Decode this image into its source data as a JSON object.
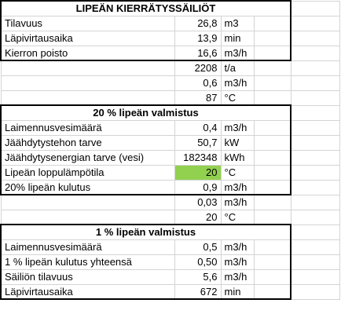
{
  "section1": {
    "title": "LIPEÄN KIERRÄTYSSÄILIÖT",
    "rows": [
      {
        "label": "Tilavuus",
        "value": "26,8",
        "unit": "m3"
      },
      {
        "label": "Läpivirtausaika",
        "value": "13,9",
        "unit": "min"
      },
      {
        "label": "Kierron poisto",
        "value": "16,6",
        "unit": "m3/h"
      }
    ]
  },
  "extra1": [
    {
      "value": "2208",
      "unit": "t/a"
    },
    {
      "value": "0,6",
      "unit": "m3/h"
    },
    {
      "value": "87",
      "unit": "°C"
    }
  ],
  "section2": {
    "title": "20 % lipeän valmistus",
    "rows": [
      {
        "label": "Laimennusvesimäärä",
        "value": "0,4",
        "unit": "m3/h"
      },
      {
        "label": "Jäähdytystehon tarve",
        "value": "50,7",
        "unit": "kW"
      },
      {
        "label": "Jäähdytysenergian tarve (vesi)",
        "value": "182348",
        "unit": "kWh"
      },
      {
        "label": "Lipeän loppulämpötila",
        "value": "20",
        "unit": "°C",
        "highlight_color": "#92d050"
      },
      {
        "label": "20% lipeän kulutus",
        "value": "0,9",
        "unit": "m3/h"
      }
    ]
  },
  "extra2": [
    {
      "value": "0,03",
      "unit": "m3/h"
    },
    {
      "value": "20",
      "unit": "°C"
    }
  ],
  "section3": {
    "title": "1 % lipeän valmistus",
    "rows": [
      {
        "label": "Laimennusvesimäärä",
        "value": "0,5",
        "unit": "m3/h"
      },
      {
        "label": "1 % lipeän kulutus yhteensä",
        "value": "0,50",
        "unit": "m3/h"
      },
      {
        "label": "Säiliön tilavuus",
        "value": "5,6",
        "unit": "m3/h"
      },
      {
        "label": "Läpivirtausaika",
        "value": "672",
        "unit": "min"
      }
    ]
  }
}
